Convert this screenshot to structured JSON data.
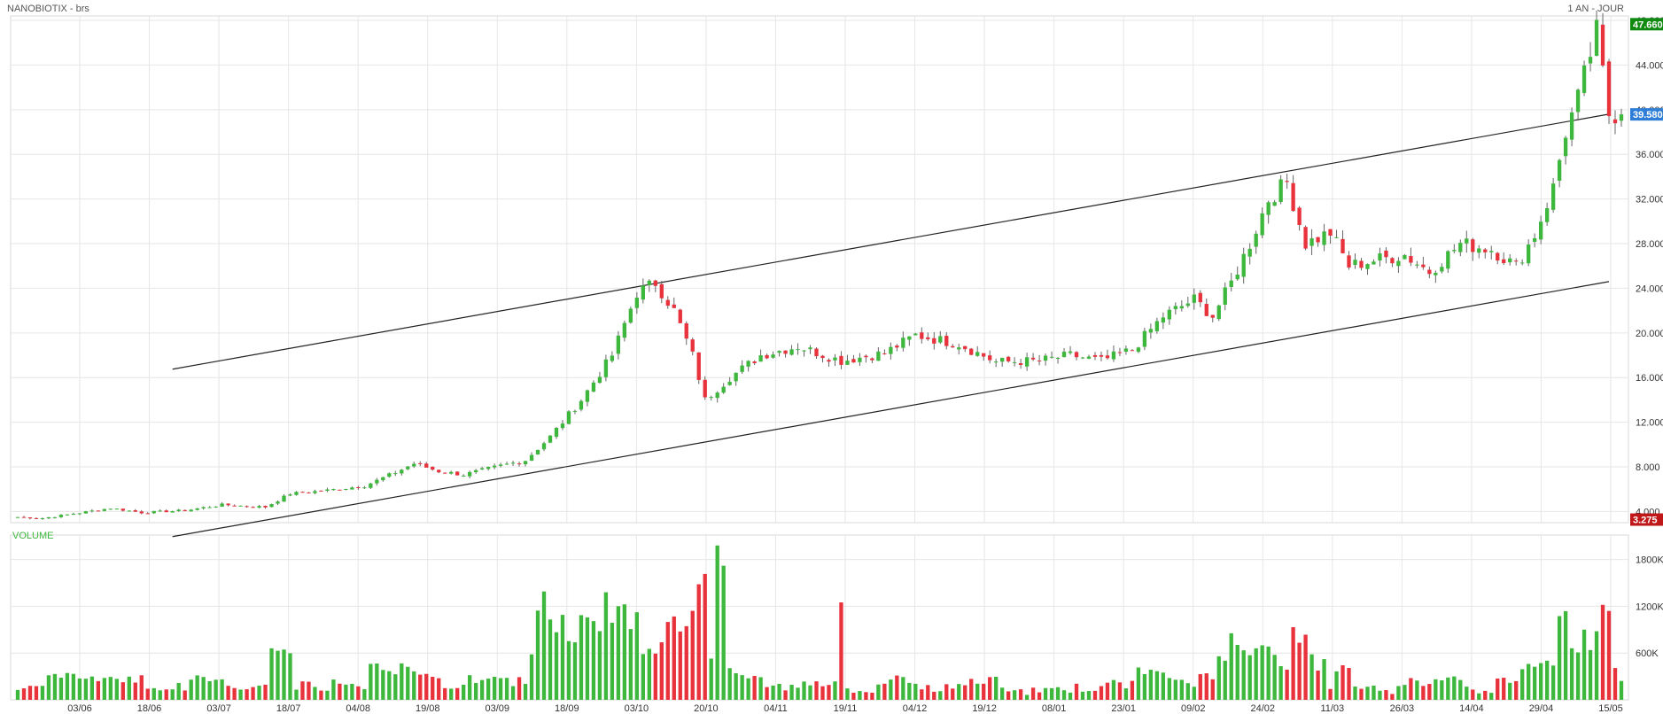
{
  "header": {
    "title": "NANOBIOTIX - brs",
    "period": "1 AN - JOUR"
  },
  "colors": {
    "up": "#3db83d",
    "down": "#e8323c",
    "grid": "#e6e6e6",
    "last_badge": "#2e7dd7",
    "high_badge": "#118a11",
    "low_badge": "#c01818",
    "volume_label": "#3db83d"
  },
  "chart_data": {
    "type": "candlestick",
    "price_axis": {
      "ticks": [
        "4.000",
        "8.000",
        "12.000",
        "16.000",
        "20.000",
        "24.000",
        "28.000",
        "32.000",
        "36.000",
        "40.000",
        "44.000",
        "48.000"
      ],
      "ylim": [
        3.0,
        48.4
      ]
    },
    "volume_axis": {
      "label": "VOLUME",
      "ticks": [
        "600K",
        "1200K",
        "1800K"
      ],
      "ylim": [
        0,
        2000000
      ]
    },
    "x_ticks": [
      "03/06",
      "18/06",
      "03/07",
      "18/07",
      "04/08",
      "19/08",
      "03/09",
      "18/09",
      "03/10",
      "20/10",
      "04/11",
      "19/11",
      "04/12",
      "19/12",
      "08/01",
      "23/01",
      "09/02",
      "24/02",
      "11/03",
      "26/03",
      "14/04",
      "29/04",
      "15/05"
    ],
    "badges": {
      "high": "47.660",
      "last": "39.580",
      "low": "3.275"
    },
    "anchors": [
      [
        0,
        3.5
      ],
      [
        4,
        3.4
      ],
      [
        9,
        3.8
      ],
      [
        15,
        4.3
      ],
      [
        20,
        3.9
      ],
      [
        27,
        4.1
      ],
      [
        33,
        4.6
      ],
      [
        40,
        4.4
      ],
      [
        44,
        5.6
      ],
      [
        50,
        5.9
      ],
      [
        56,
        6.3
      ],
      [
        61,
        7.5
      ],
      [
        64,
        8.3
      ],
      [
        68,
        7.6
      ],
      [
        72,
        7.3
      ],
      [
        78,
        8.1
      ],
      [
        82,
        8.6
      ],
      [
        86,
        10.7
      ],
      [
        91,
        14.0
      ],
      [
        96,
        18.0
      ],
      [
        100,
        23.6
      ],
      [
        103,
        24.5
      ],
      [
        106,
        22.0
      ],
      [
        109,
        18.0
      ],
      [
        111,
        14.0
      ],
      [
        115,
        16.0
      ],
      [
        120,
        18.0
      ],
      [
        126,
        18.8
      ],
      [
        133,
        17.5
      ],
      [
        140,
        18.2
      ],
      [
        145,
        19.8
      ],
      [
        152,
        19.0
      ],
      [
        158,
        17.4
      ],
      [
        165,
        17.5
      ],
      [
        170,
        18.0
      ],
      [
        175,
        17.5
      ],
      [
        180,
        18.5
      ],
      [
        185,
        21.5
      ],
      [
        190,
        23.0
      ],
      [
        193,
        21.5
      ],
      [
        196,
        24.5
      ],
      [
        199,
        28.0
      ],
      [
        202,
        32.0
      ],
      [
        205,
        33.5
      ],
      [
        208,
        28.0
      ],
      [
        212,
        29.0
      ],
      [
        215,
        26.0
      ],
      [
        219,
        26.5
      ],
      [
        224,
        27.0
      ],
      [
        228,
        25.5
      ],
      [
        233,
        28.0
      ],
      [
        238,
        27.5
      ],
      [
        242,
        26.0
      ],
      [
        245,
        28.8
      ],
      [
        248,
        33.0
      ],
      [
        250,
        38.0
      ],
      [
        252,
        41.0
      ],
      [
        255,
        47.0
      ],
      [
        257,
        39.6
      ]
    ],
    "channel_lines": [
      {
        "from": [
          25,
          16.75
        ],
        "to": [
          257,
          39.6
        ]
      },
      {
        "from": [
          25,
          1.75
        ],
        "to": [
          257,
          24.6
        ]
      }
    ]
  }
}
